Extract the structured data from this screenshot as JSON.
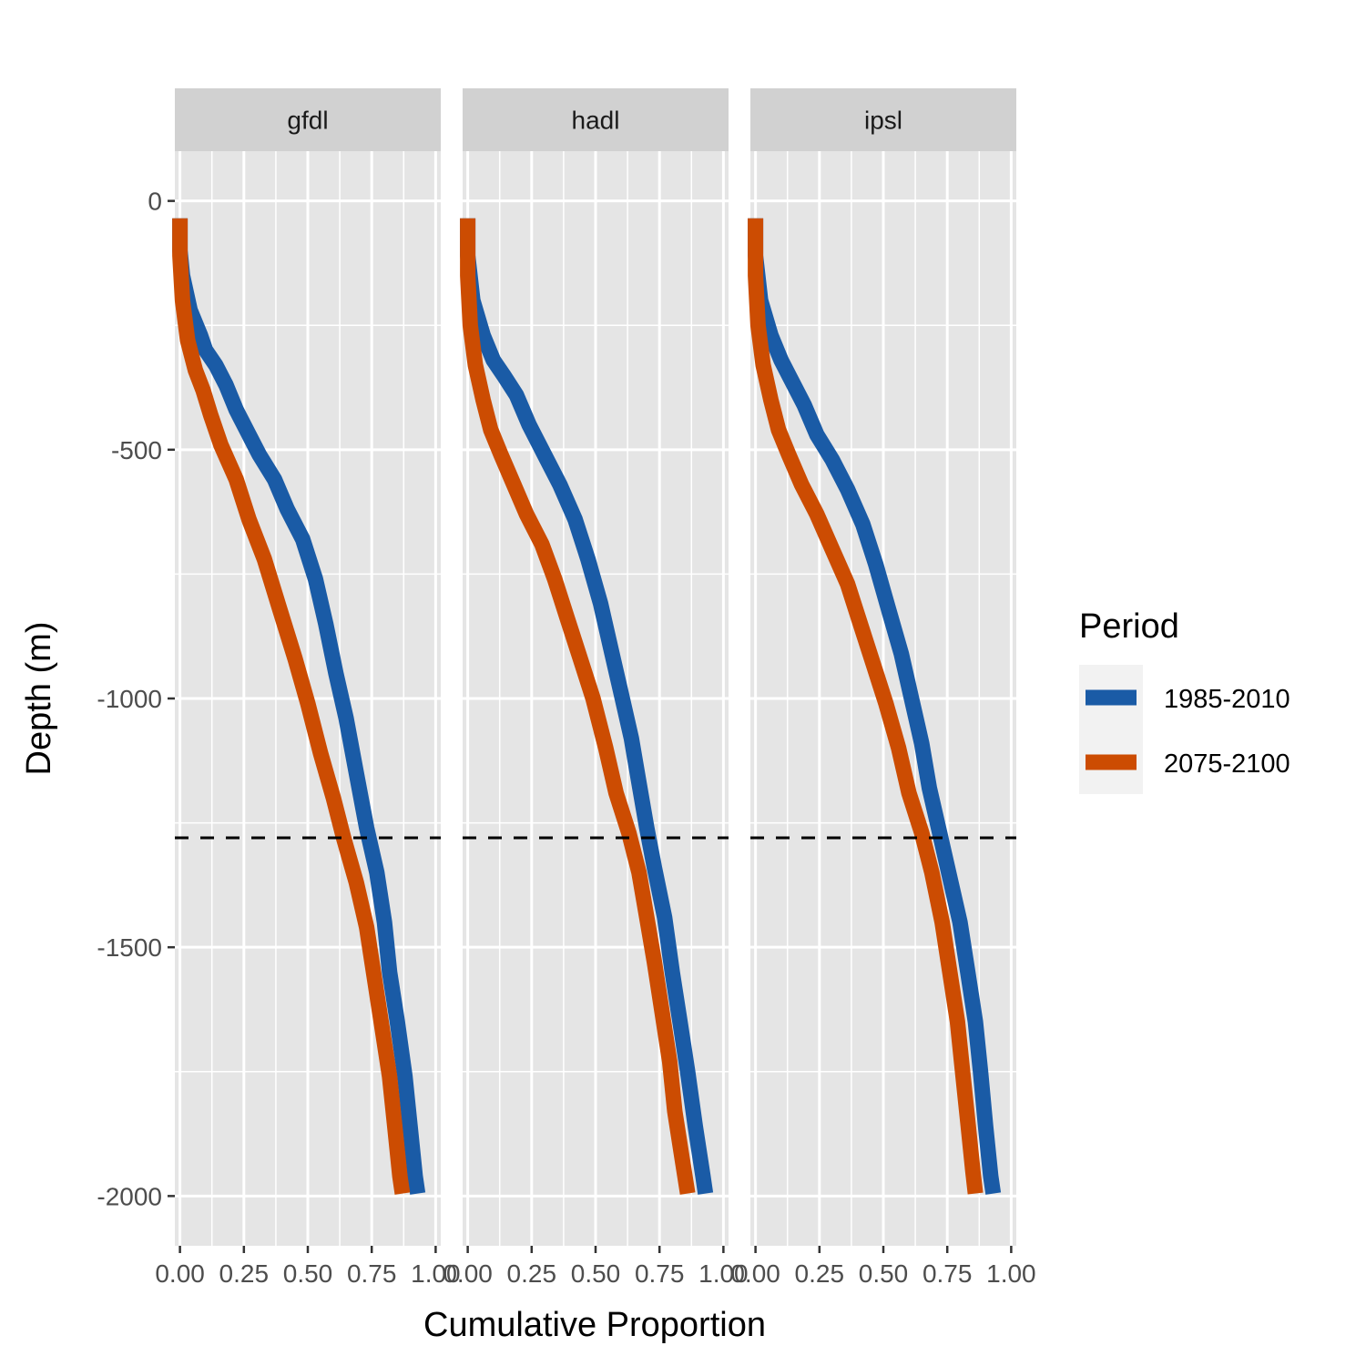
{
  "chart_data": {
    "type": "line",
    "facets": [
      "gfdl",
      "hadl",
      "ipsl"
    ],
    "xlabel": "Cumulative Proportion",
    "ylabel": "Depth (m)",
    "xlim": [
      -0.02,
      1.02
    ],
    "ylim": [
      -2100,
      100
    ],
    "x_ticks": [
      "0.00",
      "0.25",
      "0.50",
      "0.75",
      "1.00"
    ],
    "y_ticks": [
      "0",
      "-500",
      "-1000",
      "-1500",
      "-2000"
    ],
    "reference_line": {
      "y": -1280,
      "style": "dashed",
      "color": "#000000"
    },
    "legend": {
      "title": "Period",
      "position": "right",
      "entries": [
        {
          "label": "1985-2010",
          "color": "#1a5ba6"
        },
        {
          "label": "2075-2100",
          "color": "#cc4c02"
        }
      ]
    },
    "grid": true,
    "panels": [
      {
        "facet": "gfdl",
        "series": [
          {
            "name": "1985-2010",
            "color": "#1a5ba6",
            "points": [
              [
                0.0,
                -35
              ],
              [
                0.0,
                -100
              ],
              [
                0.01,
                -150
              ],
              [
                0.04,
                -220
              ],
              [
                0.08,
                -270
              ],
              [
                0.1,
                -300
              ],
              [
                0.14,
                -330
              ],
              [
                0.18,
                -370
              ],
              [
                0.22,
                -420
              ],
              [
                0.27,
                -470
              ],
              [
                0.31,
                -510
              ],
              [
                0.37,
                -560
              ],
              [
                0.42,
                -620
              ],
              [
                0.48,
                -680
              ],
              [
                0.53,
                -760
              ],
              [
                0.57,
                -850
              ],
              [
                0.61,
                -950
              ],
              [
                0.65,
                -1040
              ],
              [
                0.69,
                -1150
              ],
              [
                0.73,
                -1260
              ],
              [
                0.77,
                -1350
              ],
              [
                0.8,
                -1450
              ],
              [
                0.82,
                -1550
              ],
              [
                0.85,
                -1650
              ],
              [
                0.88,
                -1760
              ],
              [
                0.9,
                -1860
              ],
              [
                0.92,
                -1960
              ],
              [
                0.93,
                -1995
              ]
            ]
          },
          {
            "name": "2075-2100",
            "color": "#cc4c02",
            "points": [
              [
                0.0,
                -35
              ],
              [
                0.0,
                -110
              ],
              [
                0.01,
                -200
              ],
              [
                0.03,
                -280
              ],
              [
                0.06,
                -340
              ],
              [
                0.09,
                -380
              ],
              [
                0.12,
                -430
              ],
              [
                0.16,
                -490
              ],
              [
                0.22,
                -560
              ],
              [
                0.27,
                -640
              ],
              [
                0.33,
                -720
              ],
              [
                0.39,
                -820
              ],
              [
                0.45,
                -920
              ],
              [
                0.5,
                -1010
              ],
              [
                0.55,
                -1110
              ],
              [
                0.6,
                -1200
              ],
              [
                0.64,
                -1280
              ],
              [
                0.69,
                -1370
              ],
              [
                0.73,
                -1460
              ],
              [
                0.76,
                -1560
              ],
              [
                0.79,
                -1660
              ],
              [
                0.82,
                -1760
              ],
              [
                0.84,
                -1860
              ],
              [
                0.86,
                -1960
              ],
              [
                0.87,
                -1995
              ]
            ]
          }
        ]
      },
      {
        "facet": "hadl",
        "series": [
          {
            "name": "1985-2010",
            "color": "#1a5ba6",
            "points": [
              [
                0.0,
                -35
              ],
              [
                0.0,
                -110
              ],
              [
                0.02,
                -200
              ],
              [
                0.06,
                -270
              ],
              [
                0.1,
                -320
              ],
              [
                0.14,
                -350
              ],
              [
                0.19,
                -390
              ],
              [
                0.24,
                -450
              ],
              [
                0.3,
                -510
              ],
              [
                0.36,
                -570
              ],
              [
                0.42,
                -640
              ],
              [
                0.47,
                -720
              ],
              [
                0.52,
                -810
              ],
              [
                0.56,
                -900
              ],
              [
                0.6,
                -990
              ],
              [
                0.64,
                -1080
              ],
              [
                0.67,
                -1170
              ],
              [
                0.7,
                -1260
              ],
              [
                0.73,
                -1340
              ],
              [
                0.77,
                -1440
              ],
              [
                0.8,
                -1550
              ],
              [
                0.83,
                -1650
              ],
              [
                0.86,
                -1750
              ],
              [
                0.89,
                -1860
              ],
              [
                0.92,
                -1960
              ],
              [
                0.93,
                -1995
              ]
            ]
          },
          {
            "name": "2075-2100",
            "color": "#cc4c02",
            "points": [
              [
                0.0,
                -35
              ],
              [
                0.0,
                -150
              ],
              [
                0.01,
                -250
              ],
              [
                0.03,
                -330
              ],
              [
                0.06,
                -400
              ],
              [
                0.09,
                -460
              ],
              [
                0.13,
                -510
              ],
              [
                0.18,
                -570
              ],
              [
                0.23,
                -630
              ],
              [
                0.29,
                -690
              ],
              [
                0.34,
                -760
              ],
              [
                0.39,
                -840
              ],
              [
                0.44,
                -920
              ],
              [
                0.49,
                -1000
              ],
              [
                0.54,
                -1100
              ],
              [
                0.58,
                -1190
              ],
              [
                0.63,
                -1270
              ],
              [
                0.67,
                -1350
              ],
              [
                0.7,
                -1440
              ],
              [
                0.73,
                -1530
              ],
              [
                0.76,
                -1630
              ],
              [
                0.79,
                -1730
              ],
              [
                0.81,
                -1830
              ],
              [
                0.84,
                -1930
              ],
              [
                0.86,
                -1995
              ]
            ]
          }
        ]
      },
      {
        "facet": "ipsl",
        "series": [
          {
            "name": "1985-2010",
            "color": "#1a5ba6",
            "points": [
              [
                0.0,
                -35
              ],
              [
                0.0,
                -110
              ],
              [
                0.02,
                -200
              ],
              [
                0.06,
                -270
              ],
              [
                0.1,
                -320
              ],
              [
                0.14,
                -360
              ],
              [
                0.19,
                -410
              ],
              [
                0.24,
                -470
              ],
              [
                0.3,
                -520
              ],
              [
                0.36,
                -580
              ],
              [
                0.42,
                -650
              ],
              [
                0.47,
                -730
              ],
              [
                0.52,
                -820
              ],
              [
                0.57,
                -910
              ],
              [
                0.61,
                -1000
              ],
              [
                0.65,
                -1090
              ],
              [
                0.68,
                -1180
              ],
              [
                0.72,
                -1270
              ],
              [
                0.76,
                -1360
              ],
              [
                0.8,
                -1450
              ],
              [
                0.83,
                -1550
              ],
              [
                0.86,
                -1650
              ],
              [
                0.88,
                -1750
              ],
              [
                0.9,
                -1860
              ],
              [
                0.92,
                -1960
              ],
              [
                0.93,
                -1995
              ]
            ]
          },
          {
            "name": "2075-2100",
            "color": "#cc4c02",
            "points": [
              [
                0.0,
                -35
              ],
              [
                0.0,
                -150
              ],
              [
                0.01,
                -250
              ],
              [
                0.03,
                -330
              ],
              [
                0.06,
                -400
              ],
              [
                0.09,
                -460
              ],
              [
                0.13,
                -510
              ],
              [
                0.18,
                -570
              ],
              [
                0.24,
                -630
              ],
              [
                0.3,
                -700
              ],
              [
                0.36,
                -770
              ],
              [
                0.41,
                -850
              ],
              [
                0.46,
                -930
              ],
              [
                0.51,
                -1010
              ],
              [
                0.56,
                -1100
              ],
              [
                0.6,
                -1190
              ],
              [
                0.65,
                -1270
              ],
              [
                0.69,
                -1350
              ],
              [
                0.73,
                -1450
              ],
              [
                0.76,
                -1550
              ],
              [
                0.79,
                -1650
              ],
              [
                0.81,
                -1750
              ],
              [
                0.83,
                -1850
              ],
              [
                0.85,
                -1950
              ],
              [
                0.86,
                -1995
              ]
            ]
          }
        ]
      }
    ]
  }
}
